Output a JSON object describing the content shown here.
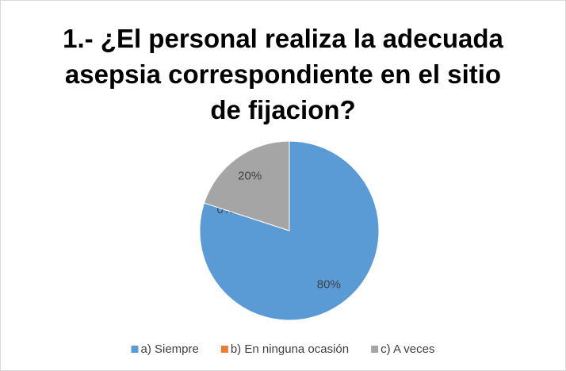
{
  "chart_data": {
    "type": "pie",
    "title": "1.- ¿El personal realiza la adecuada asepsia correspondiente en el sitio de fijacion?",
    "categories": [
      "a) Siempre",
      "b) En ninguna ocasión",
      "c) A veces"
    ],
    "values": [
      80,
      0,
      20
    ],
    "value_labels": [
      "80%",
      "0%",
      "20%"
    ],
    "colors": [
      "#5b9bd5",
      "#ed7d31",
      "#a5a5a5"
    ],
    "legend": "bottom"
  }
}
